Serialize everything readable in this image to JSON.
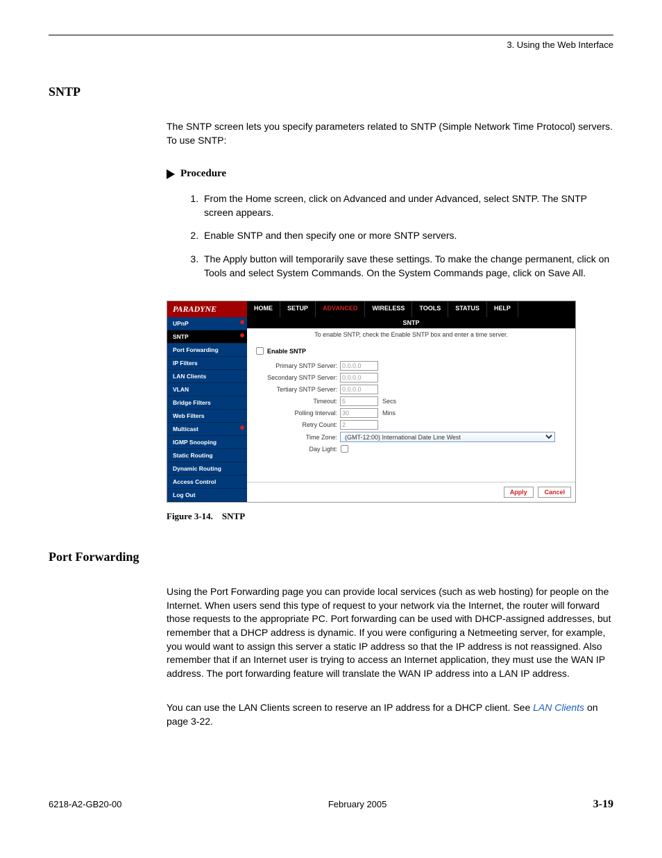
{
  "header": {
    "chapter": "3. Using the Web Interface"
  },
  "sntp": {
    "title": "SNTP",
    "intro": "The SNTP screen lets you specify parameters related to SNTP (Simple Network Time Protocol) servers. To use SNTP:",
    "procedure_label": "Procedure",
    "steps": [
      "From the Home screen, click on Advanced and under Advanced, select SNTP. The SNTP screen appears.",
      "Enable SNTP and then specify one or more SNTP servers.",
      "The Apply button will temporarily save these settings. To make the change permanent, click on Tools and select System Commands. On the System Commands page, click on Save All."
    ]
  },
  "screenshot": {
    "logo": "PARADYNE",
    "nav": [
      "HOME",
      "SETUP",
      "ADVANCED",
      "WIRELESS",
      "TOOLS",
      "STATUS",
      "HELP"
    ],
    "active_nav_index": 2,
    "sidebar": [
      {
        "label": "UPnP",
        "dot": true,
        "sel": false
      },
      {
        "label": "SNTP",
        "dot": true,
        "sel": true
      },
      {
        "label": "Port Forwarding",
        "dot": false,
        "sel": false
      },
      {
        "label": "IP Filters",
        "dot": false,
        "sel": false
      },
      {
        "label": "LAN Clients",
        "dot": false,
        "sel": false
      },
      {
        "label": "VLAN",
        "dot": false,
        "sel": false
      },
      {
        "label": "Bridge Filters",
        "dot": false,
        "sel": false
      },
      {
        "label": "Web Filters",
        "dot": false,
        "sel": false
      },
      {
        "label": "Multicast",
        "dot": true,
        "sel": false
      },
      {
        "label": "IGMP Snooping",
        "dot": false,
        "sel": false
      },
      {
        "label": "Static Routing",
        "dot": false,
        "sel": false
      },
      {
        "label": "Dynamic Routing",
        "dot": false,
        "sel": false
      },
      {
        "label": "Access Control",
        "dot": false,
        "sel": false
      },
      {
        "label": "Log Out",
        "dot": false,
        "sel": false
      }
    ],
    "main_title": "SNTP",
    "subtitle": "To enable SNTP, check the Enable SNTP box and enter a time server.",
    "enable_label": "Enable SNTP",
    "fields": {
      "primary": {
        "label": "Primary SNTP Server:",
        "value": "0.0.0.0"
      },
      "secondary": {
        "label": "Secondary SNTP Server:",
        "value": "0.0.0.0"
      },
      "tertiary": {
        "label": "Tertiary SNTP Server:",
        "value": "0.0.0.0"
      },
      "timeout": {
        "label": "Timeout:",
        "value": "5",
        "unit": "Secs"
      },
      "polling": {
        "label": "Polling Interval:",
        "value": "30",
        "unit": "Mins"
      },
      "retry": {
        "label": "Retry Count:",
        "value": "2"
      },
      "timezone": {
        "label": "Time Zone:",
        "value": "(GMT-12:00) International Date Line West"
      },
      "daylight": {
        "label": "Day Light:"
      }
    },
    "buttons": {
      "apply": "Apply",
      "cancel": "Cancel"
    }
  },
  "figure_caption": "Figure 3-14. SNTP",
  "port_forwarding": {
    "title": "Port Forwarding",
    "para1": "Using the Port Forwarding page you can provide local services (such as web hosting) for people on the Internet. When users send this type of request to your network via the Internet, the router will forward those requests to the appropriate PC. Port forwarding can be used with DHCP-assigned addresses, but remember that a DHCP address is dynamic. If you were configuring a Netmeeting server, for example, you would want to assign this server a static IP address so that the IP address is not reassigned. Also remember that if an Internet user is trying to access an Internet application, they must use the WAN IP address. The port forwarding feature will translate the WAN IP address into a LAN IP address.",
    "para2_pre": "You can use the LAN Clients screen to reserve an IP address for a DHCP client. See ",
    "para2_link": "LAN Clients",
    "para2_post": " on page 3-22."
  },
  "footer": {
    "doc_id": "6218-A2-GB20-00",
    "date": "February 2005",
    "page": "3-19"
  }
}
